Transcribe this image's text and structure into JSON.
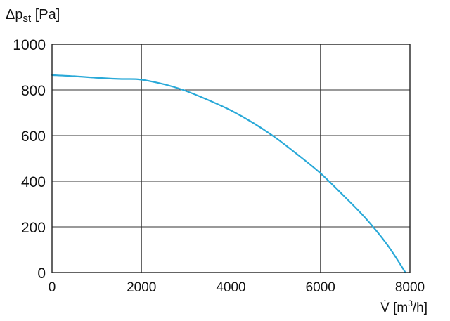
{
  "chart_data": {
    "type": "line",
    "title": "",
    "ylabel": {
      "prefix": "Δp",
      "sub": "st",
      "unit": " [Pa]"
    },
    "xlabel": {
      "prefix": "V̇ [m",
      "sup": "3",
      "suffix": "/h]"
    },
    "xlim": [
      0,
      8000
    ],
    "ylim": [
      0,
      1000
    ],
    "x_ticks": [
      0,
      2000,
      4000,
      6000,
      8000
    ],
    "y_ticks": [
      0,
      200,
      400,
      600,
      800,
      1000
    ],
    "x_tick_labels": [
      "0",
      "2000",
      "4000",
      "6000",
      "8000"
    ],
    "y_tick_labels": [
      "0",
      "200",
      "400",
      "600",
      "800",
      "1000"
    ],
    "grid": true,
    "series": [
      {
        "color": "#29a9d8",
        "x": [
          0,
          500,
          1000,
          1500,
          1900,
          2200,
          2600,
          3000,
          3500,
          4000,
          4500,
          5000,
          5500,
          6000,
          6500,
          7000,
          7500,
          7900
        ],
        "y": [
          865,
          860,
          853,
          848,
          847,
          838,
          820,
          795,
          755,
          710,
          655,
          590,
          515,
          435,
          340,
          240,
          120,
          0
        ]
      }
    ]
  }
}
